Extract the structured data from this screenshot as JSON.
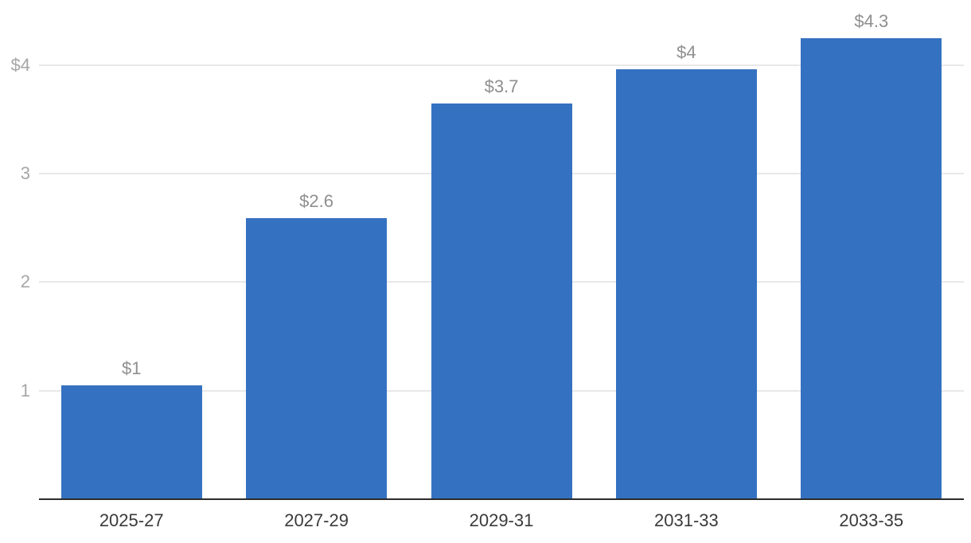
{
  "chart_data": {
    "type": "bar",
    "title": "",
    "xlabel": "",
    "ylabel": "",
    "categories": [
      "2025-27",
      "2027-29",
      "2029-31",
      "2031-33",
      "2033-35"
    ],
    "values": [
      1,
      2.6,
      3.7,
      4,
      4.3
    ],
    "value_labels": [
      "$1",
      "$2.6",
      "$3.7",
      "$4",
      "$4.3"
    ],
    "plotted_values": [
      1.05,
      2.59,
      3.65,
      3.96,
      4.25
    ],
    "y_ticks": [
      {
        "value": 1,
        "label": "1"
      },
      {
        "value": 2,
        "label": "2"
      },
      {
        "value": 3,
        "label": "3"
      },
      {
        "value": 4,
        "label": "$4"
      }
    ],
    "ylim": [
      0,
      4.6
    ],
    "grid": true,
    "legend": false,
    "colors": {
      "bar": "#3571c1",
      "gridline": "#e8e8e8",
      "axis_line": "#2b2b2b",
      "y_tick_label": "#a6a6a6",
      "value_label": "#8f8f8f",
      "x_tick_label": "#3a3a3a",
      "background": "#ffffff"
    }
  }
}
